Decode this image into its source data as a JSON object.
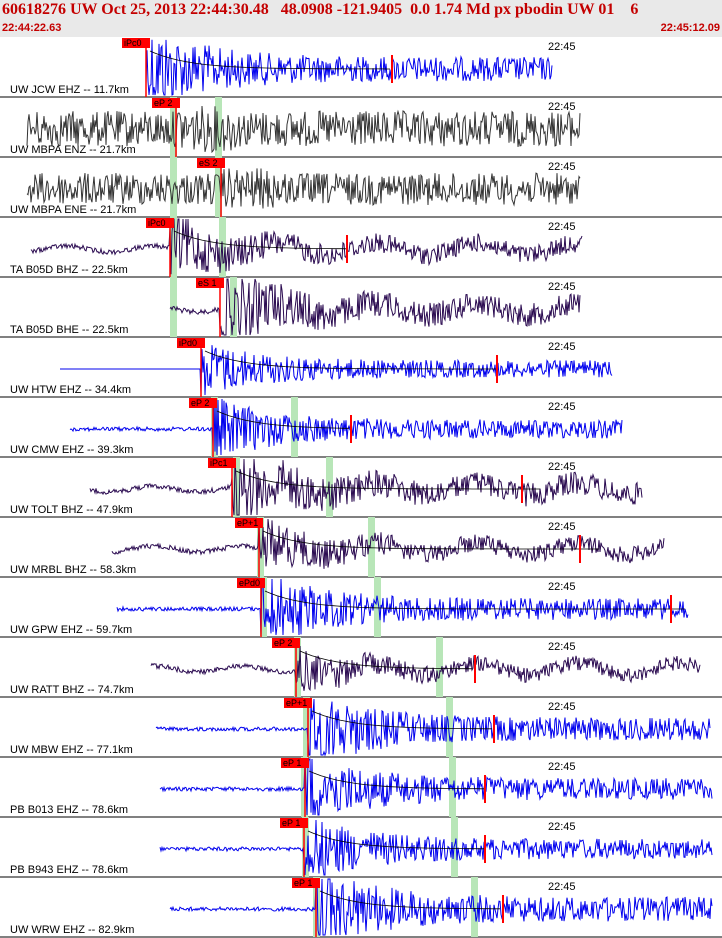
{
  "header": {
    "title": "60618276 UW Oct 25, 2013 22:44:30.48   48.0908 -121.9405  0.0 1.74 Md px pbodin UW 01    6",
    "start_time": "22:44:22.63",
    "end_time": "22:45:12.09"
  },
  "time_label": "22:45",
  "colors": {
    "blue": "#0000ee",
    "purple": "#2a0a50",
    "gray": "#333333",
    "pick": "#ff0000",
    "green": "#b8e6b8",
    "header_text": "#c40000"
  },
  "traces": [
    {
      "label": "UW JCW EHZ -- 11.7km",
      "pick": "iPc0",
      "color": "blue"
    },
    {
      "label": "UW MBPA ENZ -- 21.7km",
      "pick": "eP 2",
      "color": "gray"
    },
    {
      "label": "UW MBPA ENE -- 21.7km",
      "pick": "eS 2",
      "color": "gray"
    },
    {
      "label": "TA B05D BHZ -- 22.5km",
      "pick": "iPc0",
      "color": "purple"
    },
    {
      "label": "TA B05D BHE -- 22.5km",
      "pick": "eS 1",
      "color": "purple"
    },
    {
      "label": "UW HTW EHZ -- 34.4km",
      "pick": "iPd0",
      "color": "blue"
    },
    {
      "label": "UW CMW EHZ -- 39.3km",
      "pick": "eP 2",
      "color": "blue"
    },
    {
      "label": "UW TOLT BHZ -- 47.9km",
      "pick": "iPc1",
      "color": "purple"
    },
    {
      "label": "UW MRBL BHZ -- 58.3km",
      "pick": "eP+1",
      "color": "purple"
    },
    {
      "label": "UW GPW EHZ -- 59.7km",
      "pick": "ePd0",
      "color": "blue"
    },
    {
      "label": "UW RATT BHZ -- 74.7km",
      "pick": "eP 2",
      "color": "purple"
    },
    {
      "label": "UW MBW EHZ -- 77.1km",
      "pick": "eP+1",
      "color": "blue"
    },
    {
      "label": "PB B013 EHZ -- 78.6km",
      "pick": "eP 1",
      "color": "blue"
    },
    {
      "label": "PB B943 EHZ -- 78.6km",
      "pick": "eP 1",
      "color": "blue"
    },
    {
      "label": "UW WRW EHZ -- 82.9km",
      "pick": "eP 1",
      "color": "blue"
    }
  ]
}
